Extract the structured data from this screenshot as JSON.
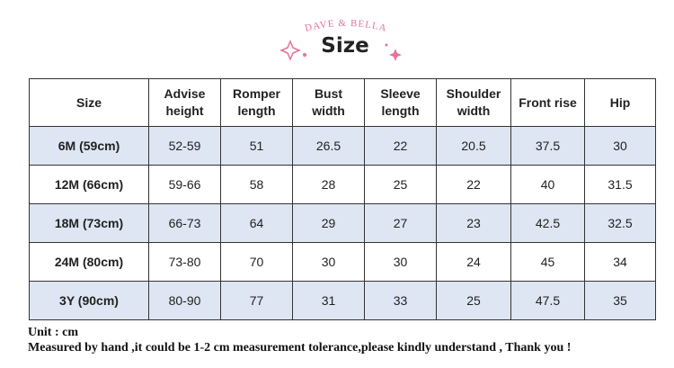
{
  "header": {
    "brand": "DAVE & BELLA",
    "title": "Size"
  },
  "table": {
    "columns": [
      "Size",
      "Advise height",
      "Romper length",
      "Bust width",
      "Sleeve length",
      "Shoulder width",
      "Front rise",
      "Hip"
    ],
    "rows": [
      [
        "6M (59cm)",
        "52-59",
        "51",
        "26.5",
        "22",
        "20.5",
        "37.5",
        "30"
      ],
      [
        "12M (66cm)",
        "59-66",
        "58",
        "28",
        "25",
        "22",
        "40",
        "31.5"
      ],
      [
        "18M (73cm)",
        "66-73",
        "64",
        "29",
        "27",
        "23",
        "42.5",
        "32.5"
      ],
      [
        "24M (80cm)",
        "73-80",
        "70",
        "30",
        "30",
        "24",
        "45",
        "34"
      ],
      [
        "3Y (90cm)",
        "80-90",
        "77",
        "31",
        "33",
        "25",
        "47.5",
        "35"
      ]
    ]
  },
  "footer": {
    "unit": "Unit : cm",
    "note": "Measured by hand ,it could be 1-2 cm measurement tolerance,please kindly understand , Thank you !"
  }
}
